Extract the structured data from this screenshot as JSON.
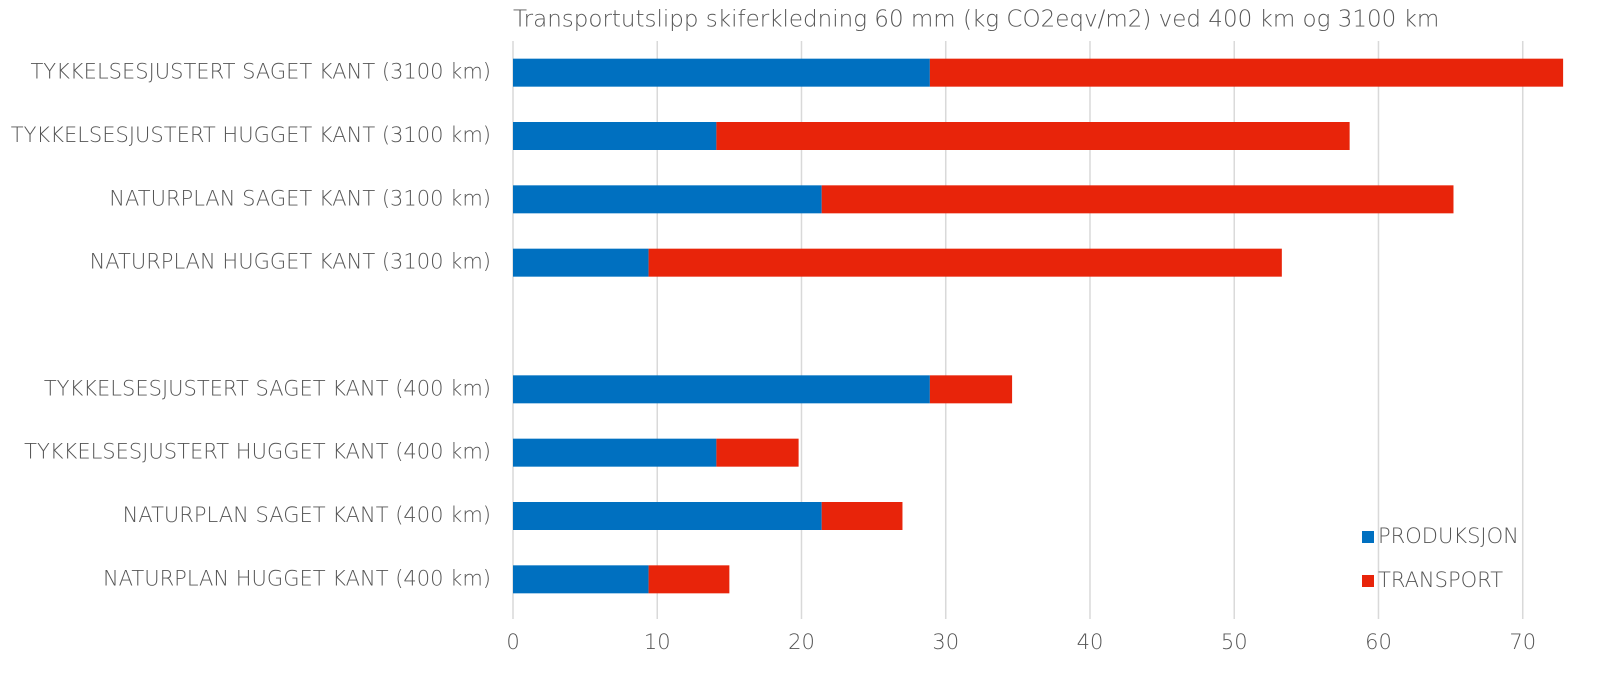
{
  "chart_data": {
    "type": "stacked_barh",
    "title": "Transportutslipp skiferkledning 60 mm (kg CO2eqv/m2)  ved 400 km og 3100 km",
    "categories": [
      "TYKKELSESJUSTERT SAGET KANT (3100 km)",
      "TYKKELSESJUSTERT HUGGET KANT (3100 km)",
      "NATURPLAN SAGET KANT (3100 km)",
      "NATURPLAN HUGGET KANT (3100 km)",
      null,
      "TYKKELSESJUSTERT SAGET KANT (400 km)",
      "TYKKELSESJUSTERT HUGGET KANT (400 km)",
      "NATURPLAN SAGET KANT (400 km)",
      "NATURPLAN HUGGET KANT (400 km)"
    ],
    "series": [
      {
        "name": "PRODUKSJON",
        "color": "#0070c0",
        "values": [
          28.9,
          14.1,
          21.4,
          9.4,
          null,
          28.9,
          14.1,
          21.4,
          9.4
        ]
      },
      {
        "name": "TRANSPORT",
        "color": "#e8240a",
        "values": [
          43.9,
          43.9,
          43.8,
          43.9,
          null,
          5.7,
          5.7,
          5.6,
          5.6
        ]
      }
    ],
    "xlim": [
      0,
      73
    ],
    "xticks": [
      0,
      10,
      20,
      30,
      40,
      50,
      60,
      70
    ],
    "grid": true,
    "legend": "lower right"
  }
}
